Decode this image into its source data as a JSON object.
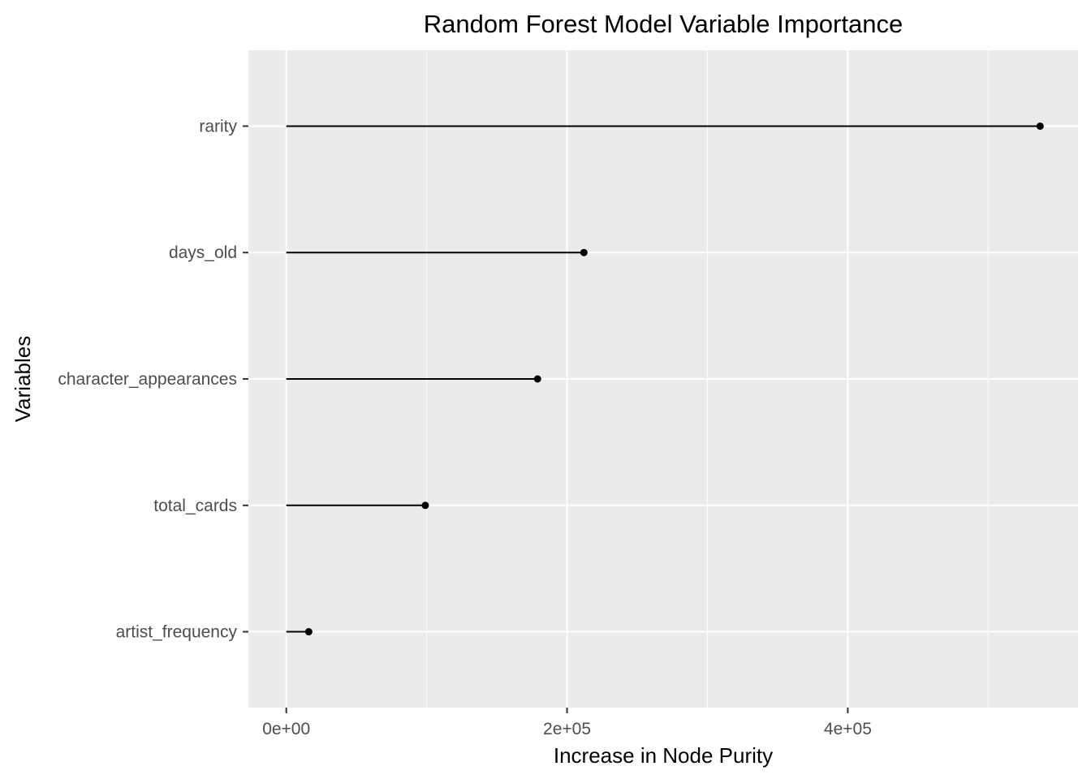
{
  "chart_data": {
    "type": "lollipop",
    "title": "Random Forest Model Variable Importance",
    "xlabel": "Increase in Node Purity",
    "ylabel": "Variables",
    "categories": [
      "rarity",
      "days_old",
      "character_appearances",
      "total_cards",
      "artist_frequency"
    ],
    "values": [
      537000,
      212000,
      179000,
      99000,
      16000
    ],
    "xlim": [
      -27000,
      564000
    ],
    "x_major_ticks": [
      0,
      200000,
      400000
    ],
    "x_tick_labels": [
      "0e+00",
      "2e+05",
      "4e+05"
    ],
    "x_minor_ticks": [
      100000,
      300000,
      500000
    ],
    "grid": true,
    "legend": "none",
    "colors": {
      "panel_background": "#EBEBEB",
      "grid": "#FFFFFF",
      "mark": "#000000",
      "tick_text": "#4D4D4D",
      "axis_tick": "#333333"
    }
  }
}
